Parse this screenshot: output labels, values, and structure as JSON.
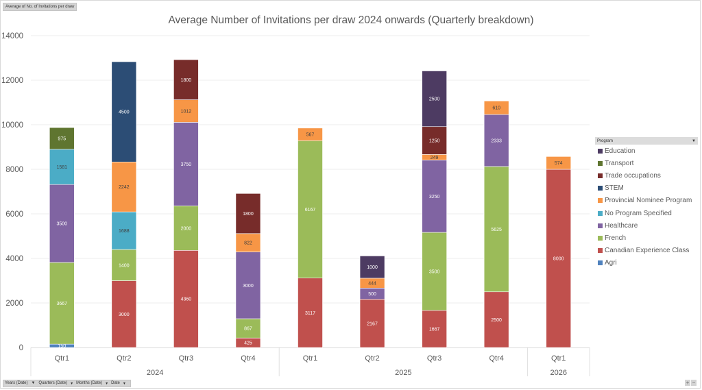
{
  "value_field": "Average of No.  of Invitations per draw",
  "axis_fields": [
    "Years (Date)",
    "Quarters (Date)",
    "Months (Date)",
    "Date"
  ],
  "legend_title": "Program",
  "zoom_controls": {
    "plus": "+",
    "minus": "−"
  },
  "chart_data": {
    "type": "bar",
    "stacked": true,
    "title": "Average Number of Invitations per draw 2024 onwards (Quarterly breakdown)",
    "xlabel": "",
    "ylabel": "",
    "ylim": [
      0,
      14000
    ],
    "yticks": [
      0,
      2000,
      4000,
      6000,
      8000,
      10000,
      12000,
      14000
    ],
    "grid": true,
    "legend_position": "right",
    "categories": [
      "Qtr1",
      "Qtr2",
      "Qtr3",
      "Qtr4",
      "Qtr1",
      "Qtr2",
      "Qtr3",
      "Qtr4",
      "Qtr1"
    ],
    "groups": [
      {
        "label": "2024",
        "count": 4
      },
      {
        "label": "2025",
        "count": 4
      },
      {
        "label": "2026",
        "count": 1
      }
    ],
    "series": [
      {
        "name": "Agri",
        "color": "#4f81bd",
        "label_color": "#ffffff",
        "values": [
          150,
          null,
          null,
          null,
          null,
          null,
          null,
          null,
          null
        ]
      },
      {
        "name": "Canadian Experience Class",
        "color": "#c0504d",
        "label_color": "#ffffff",
        "values": [
          null,
          3000,
          4360,
          425,
          3117,
          2167,
          1667,
          2500,
          8000
        ]
      },
      {
        "name": "French",
        "color": "#9bbb59",
        "label_color": "#ffffff",
        "values": [
          3667,
          1400,
          2000,
          867,
          6167,
          null,
          3500,
          5625,
          null
        ]
      },
      {
        "name": "Healthcare",
        "color": "#8064a2",
        "label_color": "#ffffff",
        "values": [
          3500,
          null,
          3750,
          3000,
          null,
          500,
          3250,
          2333,
          null
        ]
      },
      {
        "name": "No Program Specified",
        "color": "#4bacc6",
        "label_color": "#404040",
        "values": [
          1581,
          1688,
          null,
          null,
          null,
          null,
          null,
          null,
          null
        ]
      },
      {
        "name": "Provincial Nominee Program",
        "color": "#f79646",
        "label_color": "#404040",
        "values": [
          null,
          2242,
          1012,
          822,
          567,
          444,
          249,
          610,
          574
        ]
      },
      {
        "name": "STEM",
        "color": "#2c4d75",
        "label_color": "#ffffff",
        "values": [
          null,
          4500,
          null,
          null,
          null,
          null,
          null,
          null,
          null
        ]
      },
      {
        "name": "Trade occupations",
        "color": "#772c2a",
        "label_color": "#ffffff",
        "values": [
          null,
          null,
          1800,
          1800,
          null,
          null,
          1250,
          null,
          null
        ]
      },
      {
        "name": "Transport",
        "color": "#5f7530",
        "label_color": "#ffffff",
        "values": [
          975,
          null,
          null,
          null,
          null,
          null,
          null,
          null,
          null
        ]
      },
      {
        "name": "Education",
        "color": "#4d3b62",
        "label_color": "#ffffff",
        "values": [
          null,
          null,
          null,
          null,
          null,
          1000,
          2500,
          null,
          null
        ]
      }
    ],
    "legend_order": [
      "Education",
      "Transport",
      "Trade occupations",
      "STEM",
      "Provincial Nominee Program",
      "No Program Specified",
      "Healthcare",
      "French",
      "Canadian Experience Class",
      "Agri"
    ]
  }
}
